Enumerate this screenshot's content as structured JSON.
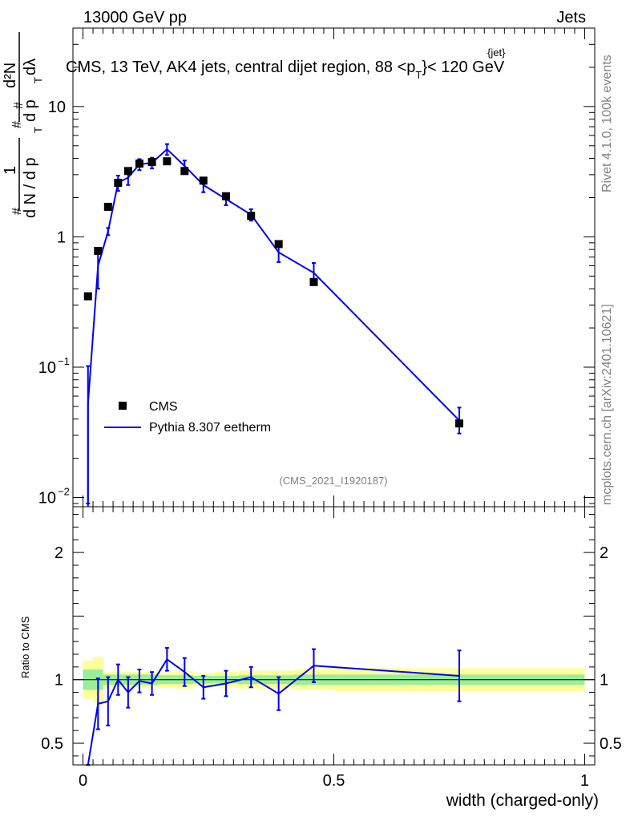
{
  "header": {
    "left": "13000 GeV pp",
    "right": "Jets"
  },
  "chart_data": {
    "type": "scatter",
    "title": "CMS, 13 TeV, AK4 jets, central dijet region, 88 < p_T^{jet} < 120 GeV",
    "title_parts": {
      "main": "CMS, 13 TeV, AK4 jets, central dijet region, 88 <p",
      "sub": "T",
      "sup": "{jet}",
      "tail": "}< 120 GeV"
    },
    "ylabel_parts": {
      "hash": "#",
      "one": "1",
      "dndpt": "d N / d p",
      "t": "T",
      "d2n": "d²N",
      "dpt": "d p",
      "dlambda": "dλ"
    },
    "xlabel": "width (charged-only)",
    "ratio_ylabel": "Ratio to CMS",
    "analysis_id": "(CMS_2021_I1920187)",
    "side_right_top": "Rivet 4.1.0,  100k events",
    "side_right_bottom": "mcplots.cern.ch [arXiv:2401.10621]",
    "xlim": [
      -0.02,
      1.02
    ],
    "ylim": [
      0.0085,
      40
    ],
    "yscale": "log",
    "ratio_ylim": [
      0.33,
      2.36
    ],
    "x_ticks": [
      {
        "value": 0,
        "label": "0"
      },
      {
        "value": 0.5,
        "label": "0.5"
      },
      {
        "value": 1,
        "label": "1"
      }
    ],
    "y_ticks": [
      {
        "value": 0.01,
        "base": "10",
        "exp": "−2"
      },
      {
        "value": 0.1,
        "base": "10",
        "exp": "−1"
      },
      {
        "value": 1,
        "base": "1",
        "exp": ""
      },
      {
        "value": 10,
        "base": "10",
        "exp": ""
      }
    ],
    "ratio_ticks": [
      {
        "value": 0.5,
        "label": "0.5"
      },
      {
        "value": 1,
        "label": "1"
      },
      {
        "value": 2,
        "label": "2"
      }
    ],
    "legend": [
      {
        "name": "CMS",
        "style": "marker"
      },
      {
        "name": "Pythia 8.307 eetherm",
        "style": "line"
      }
    ],
    "bins": [
      {
        "lo": 0.0,
        "hi": 0.02
      },
      {
        "lo": 0.02,
        "hi": 0.04
      },
      {
        "lo": 0.04,
        "hi": 0.06
      },
      {
        "lo": 0.06,
        "hi": 0.08
      },
      {
        "lo": 0.08,
        "hi": 0.1
      },
      {
        "lo": 0.1,
        "hi": 0.125
      },
      {
        "lo": 0.125,
        "hi": 0.15
      },
      {
        "lo": 0.15,
        "hi": 0.185
      },
      {
        "lo": 0.185,
        "hi": 0.22
      },
      {
        "lo": 0.22,
        "hi": 0.26
      },
      {
        "lo": 0.26,
        "hi": 0.31
      },
      {
        "lo": 0.31,
        "hi": 0.36
      },
      {
        "lo": 0.36,
        "hi": 0.42
      },
      {
        "lo": 0.42,
        "hi": 0.5
      },
      {
        "lo": 0.5,
        "hi": 1.0
      }
    ],
    "series": [
      {
        "name": "CMS",
        "x": [
          0.01,
          0.03,
          0.05,
          0.07,
          0.09,
          0.1125,
          0.1375,
          0.1675,
          0.2025,
          0.24,
          0.285,
          0.335,
          0.39,
          0.46,
          0.75
        ],
        "values": [
          0.35,
          0.78,
          1.7,
          2.6,
          3.2,
          3.65,
          3.75,
          3.8,
          3.2,
          2.7,
          2.05,
          1.45,
          0.88,
          0.45,
          0.037
        ]
      },
      {
        "name": "Pythia 8.307 eetherm",
        "x": [
          0.01,
          0.03,
          0.05,
          0.07,
          0.09,
          0.1125,
          0.1375,
          0.1675,
          0.2025,
          0.24,
          0.285,
          0.335,
          0.39,
          0.46,
          0.75
        ],
        "values": [
          0.052,
          0.6,
          1.1,
          2.6,
          2.85,
          3.6,
          3.7,
          4.7,
          3.5,
          2.5,
          1.95,
          1.48,
          0.76,
          0.53,
          0.039
        ],
        "err_lo": [
          0.043,
          0.2,
          0.07,
          0.35,
          0.35,
          0.35,
          0.35,
          0.45,
          0.35,
          0.3,
          0.2,
          0.15,
          0.12,
          0.08,
          0.008
        ],
        "err_hi": [
          0.05,
          0.2,
          0.07,
          0.35,
          0.35,
          0.35,
          0.35,
          0.45,
          0.35,
          0.3,
          0.2,
          0.15,
          0.12,
          0.1,
          0.01
        ]
      }
    ],
    "ratio": {
      "x": [
        0.01,
        0.03,
        0.05,
        0.07,
        0.09,
        0.1125,
        0.1375,
        0.1675,
        0.2025,
        0.24,
        0.285,
        0.335,
        0.39,
        0.46,
        0.75
      ],
      "values": [
        0.15,
        0.81,
        0.83,
        1.0,
        0.9,
        0.99,
        0.97,
        1.16,
        1.06,
        0.94,
        0.97,
        1.02,
        0.89,
        1.11,
        1.03
      ],
      "err": [
        0.15,
        0.2,
        0.19,
        0.12,
        0.12,
        0.09,
        0.09,
        0.09,
        0.11,
        0.09,
        0.1,
        0.08,
        0.13,
        0.13,
        0.2
      ],
      "band_inner": [
        0.08,
        0.08,
        0.04,
        0.04,
        0.04,
        0.04,
        0.04,
        0.035,
        0.035,
        0.03,
        0.03,
        0.035,
        0.035,
        0.04,
        0.04
      ],
      "band_outer": [
        0.15,
        0.18,
        0.06,
        0.06,
        0.06,
        0.06,
        0.06,
        0.06,
        0.07,
        0.05,
        0.06,
        0.07,
        0.07,
        0.08,
        0.09
      ]
    },
    "colors": {
      "data": "#000000",
      "mc": "#0000ee",
      "band_inner": "#99ee99",
      "band_outer": "#ffff99",
      "side_text": "#808080"
    }
  }
}
